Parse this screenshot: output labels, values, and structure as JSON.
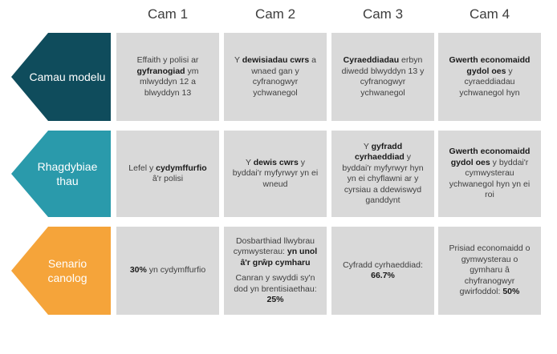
{
  "columns": [
    "Cam 1",
    "Cam 2",
    "Cam 3",
    "Cam 4"
  ],
  "rows": [
    {
      "label": "Camau modelu",
      "color": "#0f4c5c",
      "cells": [
        [
          [
            "Effaith y polisi ar ",
            ""
          ],
          [
            "gyfranogiad",
            "b"
          ],
          [
            " ym mlwyddyn 12 a blwyddyn 13",
            ""
          ]
        ],
        [
          [
            "Y ",
            ""
          ],
          [
            "dewisiadau cwrs",
            "b"
          ],
          [
            " a wnaed gan y cyfranogwyr ychwanegol",
            ""
          ]
        ],
        [
          [
            "Cyraeddiadau",
            "b"
          ],
          [
            " erbyn diwedd blwyddyn 13 y cyfranogwyr ychwanegol",
            ""
          ]
        ],
        [
          [
            "Gwerth economaidd gydol oes",
            "b"
          ],
          [
            " y cyraeddiadau ychwanegol hyn",
            ""
          ]
        ]
      ]
    },
    {
      "label": "Rhagdybiae thau",
      "color": "#2a9aab",
      "cells": [
        [
          [
            "Lefel y ",
            ""
          ],
          [
            "cydymffurfio",
            "b"
          ],
          [
            " â'r polisi",
            ""
          ]
        ],
        [
          [
            "Y ",
            ""
          ],
          [
            "dewis cwrs",
            "b"
          ],
          [
            " y byddai'r myfyrwyr yn ei wneud",
            ""
          ]
        ],
        [
          [
            "Y ",
            ""
          ],
          [
            "gyfradd cyrhaeddiad",
            "b"
          ],
          [
            " y byddai'r myfyrwyr hyn yn ei chyflawni ar y cyrsiau a ddewiswyd ganddynt",
            ""
          ]
        ],
        [
          [
            "Gwerth economaidd gydol oes",
            "b"
          ],
          [
            " y byddai'r cymwysterau ychwanegol hyn yn ei roi",
            ""
          ]
        ]
      ]
    },
    {
      "label": "Senario canolog",
      "color": "#f5a43a",
      "cells": [
        [
          [
            "30%",
            "b"
          ],
          [
            " yn cydymffurfio",
            ""
          ]
        ],
        [
          [
            "Dosbarthiad llwybrau cymwysterau: ",
            ""
          ],
          [
            "yn unol â'r grŵp cymharu",
            "b"
          ],
          [
            "",
            "br"
          ],
          [
            "Canran y swyddi sy'n dod yn brentisiaethau: ",
            ""
          ],
          [
            "25%",
            "b"
          ]
        ],
        [
          [
            "Cyfradd cyrhaeddiad: ",
            ""
          ],
          [
            "66.7%",
            "b"
          ]
        ],
        [
          [
            "Prisiad economaidd o gymwysterau o gymharu â chyfranogwyr gwirfoddol: ",
            ""
          ],
          [
            "50%",
            "b"
          ]
        ]
      ]
    }
  ]
}
